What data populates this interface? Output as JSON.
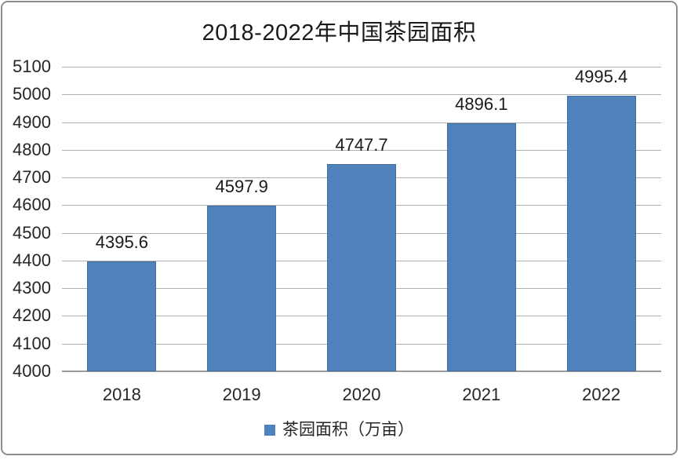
{
  "chart_data": {
    "type": "bar",
    "title": "2018-2022年中国茶园面积",
    "categories": [
      "2018",
      "2019",
      "2020",
      "2021",
      "2022"
    ],
    "series": [
      {
        "name": "茶园面积（万亩）",
        "values": [
          4395.6,
          4597.9,
          4747.7,
          4896.1,
          4995.4
        ]
      }
    ],
    "value_labels": [
      "4395.6",
      "4597.9",
      "4747.7",
      "4896.1",
      "4995.4"
    ],
    "ylim": [
      4000,
      5100
    ],
    "ytick_step": 100,
    "ytick_labels": [
      "4000",
      "4100",
      "4200",
      "4300",
      "4400",
      "4500",
      "4600",
      "4700",
      "4800",
      "4900",
      "5000",
      "5100"
    ],
    "grid": true,
    "legend_position": "bottom",
    "bar_color": "#4f81bd",
    "gridline_color": "#b0b0b0"
  },
  "legend": {
    "label": "茶园面积（万亩）",
    "swatch_color": "#4f81bd"
  }
}
